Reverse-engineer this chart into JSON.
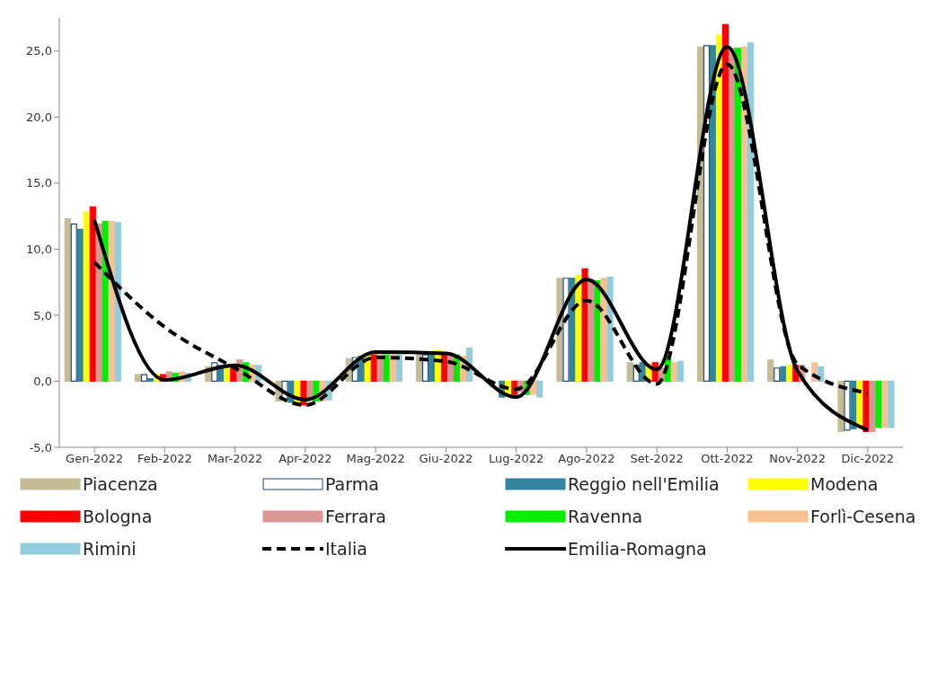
{
  "chart_data": {
    "type": "bar",
    "categories": [
      "Gen-2022",
      "Feb-2022",
      "Mar-2022",
      "Apr-2022",
      "Mag-2022",
      "Giu-2022",
      "Lug-2022",
      "Ago-2022",
      "Set-2022",
      "Ott-2022",
      "Nov-2022",
      "Dic-2022"
    ],
    "series": [
      {
        "name": "Piacenza",
        "color": "#c4bc96",
        "values": [
          12.3,
          0.5,
          1.1,
          -1.5,
          1.7,
          2.0,
          null,
          7.8,
          1.4,
          25.3,
          1.6,
          -3.8
        ]
      },
      {
        "name": "Parma",
        "color": "#ffffff",
        "values": [
          11.9,
          0.5,
          1.4,
          -1.4,
          1.8,
          2.0,
          null,
          7.8,
          1.2,
          25.4,
          1.0,
          -3.7
        ]
      },
      {
        "name": "Reggio nell'Emilia",
        "color": "#31859c",
        "values": [
          11.5,
          0.2,
          1.2,
          -1.6,
          1.9,
          2.0,
          -1.2,
          7.8,
          1.4,
          25.4,
          1.1,
          -3.6
        ]
      },
      {
        "name": "Modena",
        "color": "#ffff00",
        "values": [
          12.8,
          0.5,
          1.0,
          -1.5,
          2.1,
          2.3,
          -1.0,
          8.0,
          1.3,
          26.2,
          1.2,
          -3.5
        ]
      },
      {
        "name": "Bologna",
        "color": "#ff0000",
        "values": [
          13.2,
          0.5,
          1.0,
          -1.8,
          2.0,
          2.1,
          -1.0,
          8.5,
          1.4,
          27.0,
          1.2,
          -3.8
        ]
      },
      {
        "name": "Ferrara",
        "color": "#d99694",
        "values": [
          11.9,
          0.7,
          1.6,
          -1.4,
          2.0,
          2.0,
          -0.8,
          7.7,
          1.0,
          25.2,
          1.2,
          -3.8
        ]
      },
      {
        "name": "Ravenna",
        "color": "#00ee00",
        "values": [
          12.1,
          0.6,
          1.4,
          -1.5,
          2.0,
          2.0,
          -1.0,
          7.6,
          1.9,
          25.2,
          null,
          -3.5
        ]
      },
      {
        "name": "Forlì-Cesena",
        "color": "#fac090",
        "values": [
          12.1,
          0.7,
          1.2,
          -1.5,
          2.0,
          1.9,
          -1.0,
          7.8,
          1.4,
          25.3,
          1.4,
          -3.5
        ]
      },
      {
        "name": "Rimini",
        "color": "#93cddd",
        "values": [
          12.0,
          0.6,
          1.2,
          -1.4,
          2.0,
          2.5,
          -1.2,
          7.9,
          1.5,
          25.6,
          1.1,
          -3.5
        ]
      },
      {
        "name": "Italia",
        "type": "line",
        "color": "#000000",
        "line_style": "dashed",
        "values": [
          9.0,
          4.1,
          1.0,
          -1.8,
          1.8,
          1.5,
          -0.6,
          6.1,
          -0.2,
          24.0,
          1.3,
          -0.9
        ]
      },
      {
        "name": "Emilia-Romagna",
        "type": "line",
        "color": "#000000",
        "line_style": "solid",
        "values": [
          12.2,
          0.1,
          1.2,
          -1.4,
          2.2,
          2.1,
          -1.2,
          7.7,
          0.9,
          25.3,
          0.8,
          -3.7
        ]
      }
    ],
    "ylim": [
      -5,
      27.5
    ],
    "yticks": [
      {
        "value": -5,
        "label": "-5,0"
      },
      {
        "value": 0,
        "label": "0,0"
      },
      {
        "value": 5,
        "label": "5,0"
      },
      {
        "value": 10,
        "label": "10,0"
      },
      {
        "value": 15,
        "label": "15,0"
      },
      {
        "value": 20,
        "label": "20,0"
      },
      {
        "value": 25,
        "label": "25,0"
      }
    ],
    "grid": false,
    "legend": "bottom",
    "marker": "none"
  }
}
